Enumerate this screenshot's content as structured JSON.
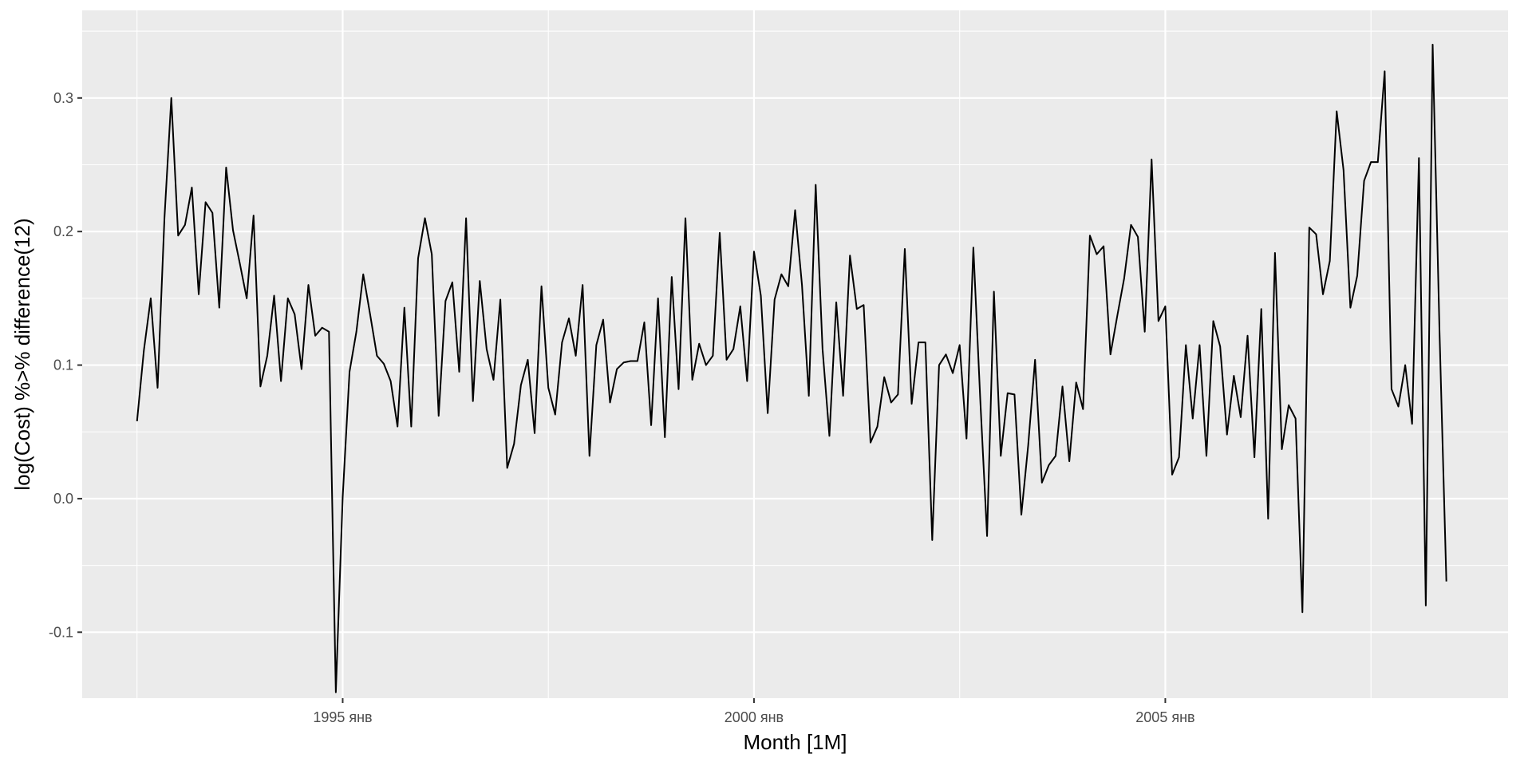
{
  "chart_data": {
    "type": "line",
    "xlabel": "Month [1M]",
    "ylabel": "log(Cost) %>% difference(12)",
    "x_start": "1992 июл",
    "x_end": "2008 июн",
    "xlim": [
      "1991 ноя",
      "2009 мар"
    ],
    "ylim": [
      -0.1494,
      0.3656
    ],
    "x_ticks": [
      {
        "date": "1995 янв",
        "label": "1995 янв"
      },
      {
        "date": "2000 янв",
        "label": "2000 янв"
      },
      {
        "date": "2005 янв",
        "label": "2005 янв"
      }
    ],
    "x_minor_ticks": [
      "1992 июл",
      "1997 июл",
      "2002 июл",
      "2007 июл"
    ],
    "y_ticks": [
      {
        "value": -0.1,
        "label": "-0.1"
      },
      {
        "value": 0.0,
        "label": "0.0"
      },
      {
        "value": 0.1,
        "label": "0.1"
      },
      {
        "value": 0.2,
        "label": "0.2"
      },
      {
        "value": 0.3,
        "label": "0.3"
      }
    ],
    "y_minor_ticks": [
      -0.15,
      -0.05,
      0.05,
      0.15,
      0.25,
      0.35
    ],
    "grid": true,
    "series": [
      {
        "color": "#000000",
        "values": [
          0.058,
          0.111,
          0.15,
          0.083,
          0.21,
          0.3,
          0.197,
          0.205,
          0.233,
          0.153,
          0.222,
          0.214,
          0.143,
          0.248,
          0.201,
          0.176,
          0.15,
          0.212,
          0.084,
          0.107,
          0.152,
          0.088,
          0.15,
          0.138,
          0.097,
          0.16,
          0.122,
          0.128,
          0.125,
          -0.145,
          0.001,
          0.095,
          0.125,
          0.168,
          0.138,
          0.107,
          0.101,
          0.088,
          0.054,
          0.143,
          0.054,
          0.18,
          0.21,
          0.183,
          0.062,
          0.148,
          0.162,
          0.095,
          0.21,
          0.073,
          0.163,
          0.112,
          0.089,
          0.149,
          0.023,
          0.041,
          0.085,
          0.104,
          0.049,
          0.159,
          0.083,
          0.063,
          0.117,
          0.135,
          0.107,
          0.16,
          0.032,
          0.115,
          0.134,
          0.072,
          0.097,
          0.102,
          0.103,
          0.103,
          0.132,
          0.055,
          0.15,
          0.046,
          0.166,
          0.082,
          0.21,
          0.089,
          0.116,
          0.1,
          0.107,
          0.199,
          0.104,
          0.112,
          0.144,
          0.088,
          0.185,
          0.152,
          0.064,
          0.149,
          0.168,
          0.159,
          0.216,
          0.16,
          0.077,
          0.235,
          0.112,
          0.047,
          0.147,
          0.077,
          0.182,
          0.142,
          0.145,
          0.042,
          0.054,
          0.091,
          0.072,
          0.078,
          0.187,
          0.071,
          0.117,
          0.117,
          -0.031,
          0.1,
          0.108,
          0.094,
          0.115,
          0.045,
          0.188,
          0.075,
          -0.028,
          0.155,
          0.032,
          0.079,
          0.078,
          -0.012,
          0.04,
          0.104,
          0.012,
          0.025,
          0.032,
          0.084,
          0.028,
          0.087,
          0.067,
          0.197,
          0.183,
          0.189,
          0.108,
          0.137,
          0.165,
          0.205,
          0.196,
          0.125,
          0.254,
          0.133,
          0.144,
          0.018,
          0.031,
          0.115,
          0.06,
          0.115,
          0.032,
          0.133,
          0.114,
          0.048,
          0.092,
          0.061,
          0.122,
          0.031,
          0.142,
          -0.015,
          0.184,
          0.037,
          0.07,
          0.06,
          -0.085,
          0.203,
          0.198,
          0.153,
          0.178,
          0.29,
          0.246,
          0.143,
          0.167,
          0.238,
          0.252,
          0.252,
          0.32,
          0.082,
          0.069,
          0.1,
          0.056,
          0.255,
          -0.08,
          0.34,
          0.125,
          -0.062
        ]
      }
    ]
  }
}
